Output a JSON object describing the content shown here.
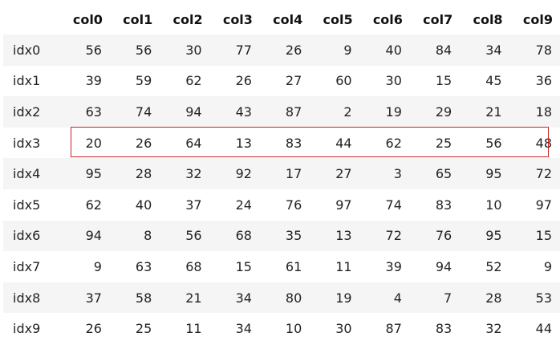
{
  "table": {
    "columns": [
      "col0",
      "col1",
      "col2",
      "col3",
      "col4",
      "col5",
      "col6",
      "col7",
      "col8",
      "col9"
    ],
    "rows": [
      {
        "index": "idx0",
        "values": [
          "56",
          "56",
          "30",
          "77",
          "26",
          "9",
          "40",
          "84",
          "34",
          "78"
        ]
      },
      {
        "index": "idx1",
        "values": [
          "39",
          "59",
          "62",
          "26",
          "27",
          "60",
          "30",
          "15",
          "45",
          "36"
        ]
      },
      {
        "index": "idx2",
        "values": [
          "63",
          "74",
          "94",
          "43",
          "87",
          "2",
          "19",
          "29",
          "21",
          "18"
        ]
      },
      {
        "index": "idx3",
        "values": [
          "20",
          "26",
          "64",
          "13",
          "83",
          "44",
          "62",
          "25",
          "56",
          "48"
        ]
      },
      {
        "index": "idx4",
        "values": [
          "95",
          "28",
          "32",
          "92",
          "17",
          "27",
          "3",
          "65",
          "95",
          "72"
        ]
      },
      {
        "index": "idx5",
        "values": [
          "62",
          "40",
          "37",
          "24",
          "76",
          "97",
          "74",
          "83",
          "10",
          "97"
        ]
      },
      {
        "index": "idx6",
        "values": [
          "94",
          "8",
          "56",
          "68",
          "35",
          "13",
          "72",
          "76",
          "95",
          "15"
        ]
      },
      {
        "index": "idx7",
        "values": [
          "9",
          "63",
          "68",
          "15",
          "61",
          "11",
          "39",
          "94",
          "52",
          "9"
        ]
      },
      {
        "index": "idx8",
        "values": [
          "37",
          "58",
          "21",
          "34",
          "80",
          "19",
          "4",
          "7",
          "28",
          "53"
        ]
      },
      {
        "index": "idx9",
        "values": [
          "26",
          "25",
          "11",
          "34",
          "10",
          "30",
          "87",
          "83",
          "32",
          "44"
        ]
      }
    ],
    "highlighted_row": "idx3",
    "highlight_color": "#cc2222"
  }
}
